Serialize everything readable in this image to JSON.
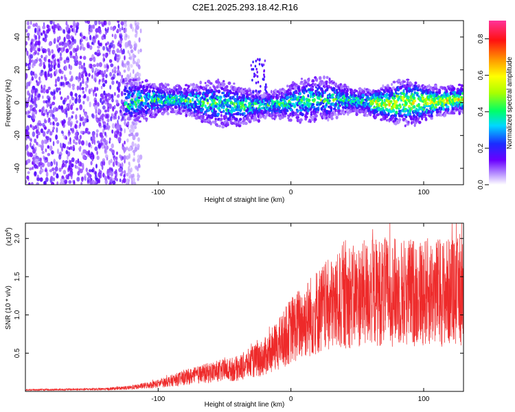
{
  "title": "C2E1.2025.293.18.42.R16",
  "colors": {
    "snr_line": "#ee2a2a",
    "frame": "#000000"
  },
  "chart_data": [
    {
      "type": "heatmap",
      "name": "spectrogram",
      "title": "C2E1.2025.293.18.42.R16",
      "xlabel": "Height of straight line (km)",
      "ylabel": "Frequency (Hz)",
      "xlim": [
        -200,
        130
      ],
      "ylim": [
        -50,
        50
      ],
      "xticks": [
        -100,
        0,
        100
      ],
      "yticks": [
        -40,
        -20,
        0,
        20,
        40
      ],
      "colorbar": {
        "label": "Normalized spectral amplitude",
        "range": [
          0,
          0.9
        ],
        "ticks": [
          "0.0",
          "0.2",
          "0.4",
          "0.6",
          "0.8"
        ]
      },
      "description_bands": [
        {
          "x_from": -200,
          "x_to": -125,
          "level": "noise",
          "amplitude": 0.1
        },
        {
          "x_from": -125,
          "x_to": 130,
          "level": "signal",
          "center_hz": 0,
          "amplitude": 0.5
        }
      ]
    },
    {
      "type": "line",
      "name": "snr",
      "xlabel": "Height of straight line (km)",
      "ylabel": "SNR (10 * v/v)",
      "exponent_label": "(x10",
      "exponent_sup": "4",
      "xlim": [
        -200,
        130
      ],
      "ylim": [
        0,
        2.2
      ],
      "xticks": [
        -100,
        0,
        100
      ],
      "yticks": [
        "0.5",
        "1.0",
        "1.5",
        "2.0"
      ],
      "trend": [
        {
          "x": -200,
          "y": 0.02
        },
        {
          "x": -140,
          "y": 0.03
        },
        {
          "x": -120,
          "y": 0.05
        },
        {
          "x": -100,
          "y": 0.1
        },
        {
          "x": -80,
          "y": 0.18
        },
        {
          "x": -60,
          "y": 0.25
        },
        {
          "x": -40,
          "y": 0.3
        },
        {
          "x": -20,
          "y": 0.45
        },
        {
          "x": -10,
          "y": 0.6
        },
        {
          "x": 0,
          "y": 0.8
        },
        {
          "x": 20,
          "y": 1.05
        },
        {
          "x": 40,
          "y": 1.2
        },
        {
          "x": 60,
          "y": 1.3
        },
        {
          "x": 80,
          "y": 1.3
        },
        {
          "x": 100,
          "y": 1.3
        },
        {
          "x": 130,
          "y": 1.3
        }
      ]
    }
  ]
}
